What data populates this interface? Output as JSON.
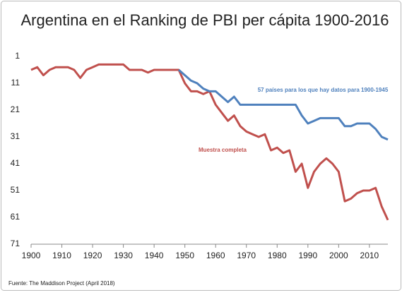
{
  "chart_data": {
    "type": "line",
    "title": "Argentina en el Ranking de PBI per cápita 1900-2016",
    "source": "Fuente: The Maddison Project (April 2018)",
    "x": [
      1900,
      1902,
      1904,
      1906,
      1908,
      1910,
      1912,
      1914,
      1916,
      1918,
      1920,
      1922,
      1924,
      1926,
      1928,
      1930,
      1932,
      1934,
      1936,
      1938,
      1940,
      1942,
      1944,
      1946,
      1948,
      1950,
      1952,
      1954,
      1956,
      1958,
      1960,
      1962,
      1964,
      1966,
      1968,
      1970,
      1972,
      1974,
      1976,
      1978,
      1980,
      1982,
      1984,
      1986,
      1988,
      1990,
      1992,
      1994,
      1996,
      1998,
      2000,
      2002,
      2004,
      2006,
      2008,
      2010,
      2012,
      2014,
      2016
    ],
    "series": [
      {
        "name": "Muestra completa",
        "color": "#c0504d",
        "values": [
          6,
          5,
          8,
          6,
          5,
          5,
          5,
          6,
          9,
          6,
          5,
          4,
          4,
          4,
          4,
          4,
          6,
          6,
          6,
          7,
          6,
          6,
          6,
          6,
          6,
          11,
          14,
          14,
          15,
          14,
          19,
          22,
          25,
          23,
          27,
          29,
          30,
          31,
          30,
          36,
          35,
          37,
          36,
          44,
          41,
          50,
          44,
          41,
          39,
          41,
          44,
          55,
          54,
          52,
          51,
          51,
          50,
          57,
          62
        ]
      },
      {
        "name": "57 países para los que hay datos para 1900-1945",
        "color": "#4f81bd",
        "values": [
          null,
          null,
          null,
          null,
          null,
          null,
          null,
          null,
          null,
          null,
          null,
          null,
          null,
          null,
          null,
          null,
          null,
          null,
          null,
          null,
          null,
          null,
          null,
          null,
          6,
          8,
          10,
          11,
          13,
          14,
          14,
          16,
          18,
          16,
          19,
          19,
          19,
          19,
          19,
          19,
          19,
          19,
          19,
          19,
          23,
          26,
          25,
          24,
          24,
          24,
          24,
          27,
          27,
          26,
          26,
          26,
          28,
          31,
          32
        ]
      }
    ],
    "xlim": [
      1900,
      2016
    ],
    "xticks": [
      1900,
      1910,
      1920,
      1930,
      1940,
      1950,
      1960,
      1970,
      1980,
      1990,
      2000,
      2010
    ],
    "ylim": [
      1,
      71
    ],
    "yticks": [
      1,
      11,
      21,
      31,
      41,
      51,
      61,
      71
    ],
    "y_inverted": true
  }
}
